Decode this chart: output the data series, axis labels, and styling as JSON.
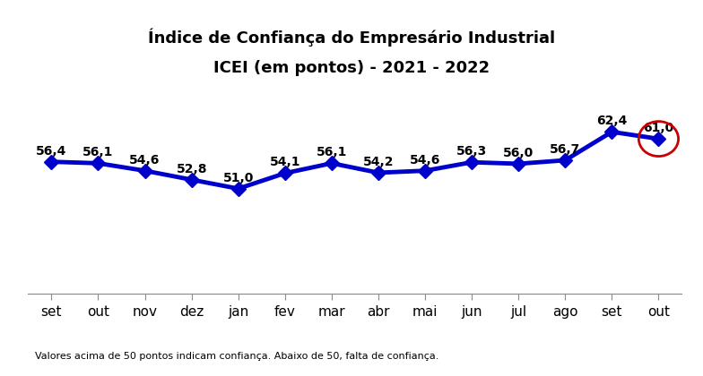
{
  "title_line1": "Índice de Confiança do Empresário Industrial",
  "title_line2": "ICEI (em pontos) - 2021 - 2022",
  "categories": [
    "set",
    "out",
    "nov",
    "dez",
    "jan",
    "fev",
    "mar",
    "abr",
    "mai",
    "jun",
    "jul",
    "ago",
    "set",
    "out"
  ],
  "values": [
    56.4,
    56.1,
    54.6,
    52.8,
    51.0,
    54.1,
    56.1,
    54.2,
    54.6,
    56.3,
    56.0,
    56.7,
    62.4,
    61.0
  ],
  "line_color": "#0000CC",
  "circle_color": "#CC0000",
  "footnote": "Valores acima de 50 pontos indicam confiança. Abaixo de 50, falta de confiança.",
  "ylim_min": 30,
  "ylim_max": 70,
  "marker_size": 8,
  "line_width": 3.5,
  "label_fontsize": 10,
  "tick_fontsize": 11,
  "title_fontsize": 13
}
